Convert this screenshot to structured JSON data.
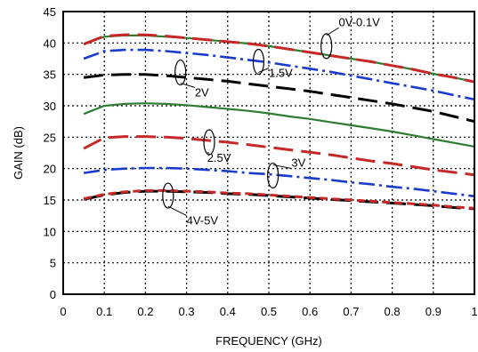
{
  "chart_data": {
    "type": "line",
    "title": "",
    "xlabel": "FREQUENCY (GHz)",
    "ylabel": "GAIN (dB)",
    "xlim": [
      0,
      1
    ],
    "ylim": [
      0,
      45
    ],
    "xticks": [
      "0",
      "0.1",
      "0.2",
      "0.3",
      "0.4",
      "0.5",
      "0.6",
      "0.7",
      "0.8",
      "0.9",
      "1"
    ],
    "yticks": [
      "0",
      "5",
      "10",
      "15",
      "20",
      "25",
      "30",
      "35",
      "40",
      "45"
    ],
    "grid": true,
    "x": [
      0.05,
      0.1,
      0.15,
      0.2,
      0.25,
      0.3,
      0.35,
      0.4,
      0.45,
      0.5,
      0.55,
      0.6,
      0.65,
      0.7,
      0.75,
      0.8,
      0.85,
      0.9,
      0.95,
      1.0
    ],
    "series": [
      {
        "color": "#2e7d32",
        "dash": "solid",
        "values": [
          39.8,
          41.0,
          41.2,
          41.2,
          41.0,
          40.8,
          40.5,
          40.2,
          39.9,
          39.5,
          39.0,
          38.5,
          38.0,
          37.5,
          37.0,
          36.4,
          35.8,
          35.1,
          34.5,
          33.8
        ]
      },
      {
        "color": "#c62828",
        "dash": "long",
        "values": [
          39.8,
          41.1,
          41.3,
          41.3,
          41.1,
          40.8,
          40.5,
          40.2,
          39.9,
          39.5,
          39.0,
          38.5,
          38.0,
          37.5,
          37.0,
          36.4,
          35.8,
          35.1,
          34.5,
          33.8
        ]
      },
      {
        "color": "#1a3ccc",
        "dash": "dashdot",
        "values": [
          37.5,
          38.7,
          38.9,
          38.9,
          38.7,
          38.4,
          38.1,
          37.7,
          37.3,
          36.9,
          36.4,
          35.9,
          35.4,
          34.8,
          34.2,
          33.6,
          33.0,
          32.4,
          31.7,
          31.0
        ]
      },
      {
        "color": "#000000",
        "dash": "long",
        "values": [
          34.5,
          34.9,
          35.0,
          35.0,
          34.8,
          34.5,
          34.2,
          33.9,
          33.5,
          33.1,
          32.7,
          32.3,
          31.8,
          31.3,
          30.8,
          30.3,
          29.7,
          29.1,
          28.3,
          27.5
        ]
      },
      {
        "color": "#2e7d32",
        "dash": "solid",
        "values": [
          28.7,
          30.0,
          30.3,
          30.4,
          30.3,
          30.1,
          29.8,
          29.5,
          29.2,
          28.8,
          28.3,
          27.9,
          27.4,
          26.9,
          26.4,
          25.9,
          25.3,
          24.7,
          24.1,
          23.5
        ]
      },
      {
        "color": "#c62828",
        "dash": "long",
        "values": [
          23.2,
          24.9,
          25.1,
          25.1,
          25.0,
          24.8,
          24.5,
          24.2,
          23.8,
          23.4,
          23.0,
          22.6,
          22.2,
          21.7,
          21.2,
          20.8,
          20.3,
          19.8,
          19.4,
          19.0
        ]
      },
      {
        "color": "#1a3ccc",
        "dash": "dashdot",
        "values": [
          19.3,
          19.8,
          20.0,
          20.1,
          20.1,
          20.0,
          19.8,
          19.6,
          19.3,
          19.1,
          18.8,
          18.5,
          18.2,
          17.8,
          17.5,
          17.1,
          16.8,
          16.4,
          16.0,
          15.6
        ]
      },
      {
        "color": "#000000",
        "dash": "long",
        "values": [
          15.1,
          15.8,
          16.2,
          16.4,
          16.4,
          16.3,
          16.2,
          16.0,
          15.9,
          15.7,
          15.5,
          15.3,
          15.1,
          14.9,
          14.7,
          14.5,
          14.3,
          14.1,
          13.8,
          13.6
        ]
      },
      {
        "color": "#c62828",
        "dash": "short",
        "values": [
          15.2,
          15.9,
          16.3,
          16.5,
          16.5,
          16.4,
          16.3,
          16.1,
          16.0,
          15.8,
          15.6,
          15.4,
          15.2,
          15.0,
          14.8,
          14.6,
          14.4,
          14.2,
          13.9,
          13.7
        ]
      }
    ],
    "annotations": [
      {
        "text": "0V-0.1V",
        "x": 0.67,
        "y": 42.7,
        "ex": 0.64,
        "ey": 39.5
      },
      {
        "text": "1.5V",
        "x": 0.5,
        "y": 34.6,
        "ex": 0.475,
        "ey": 37.0
      },
      {
        "text": "2V",
        "x": 0.32,
        "y": 31.5,
        "ex": 0.285,
        "ey": 35.3
      },
      {
        "text": "2.5V",
        "x": 0.35,
        "y": 21.1,
        "ex": 0.355,
        "ey": 24.2
      },
      {
        "text": "3V",
        "x": 0.555,
        "y": 20.3,
        "ex": 0.51,
        "ey": 18.9
      },
      {
        "text": "4V-5V",
        "x": 0.3,
        "y": 11.1,
        "ex": 0.255,
        "ey": 15.7
      }
    ]
  }
}
